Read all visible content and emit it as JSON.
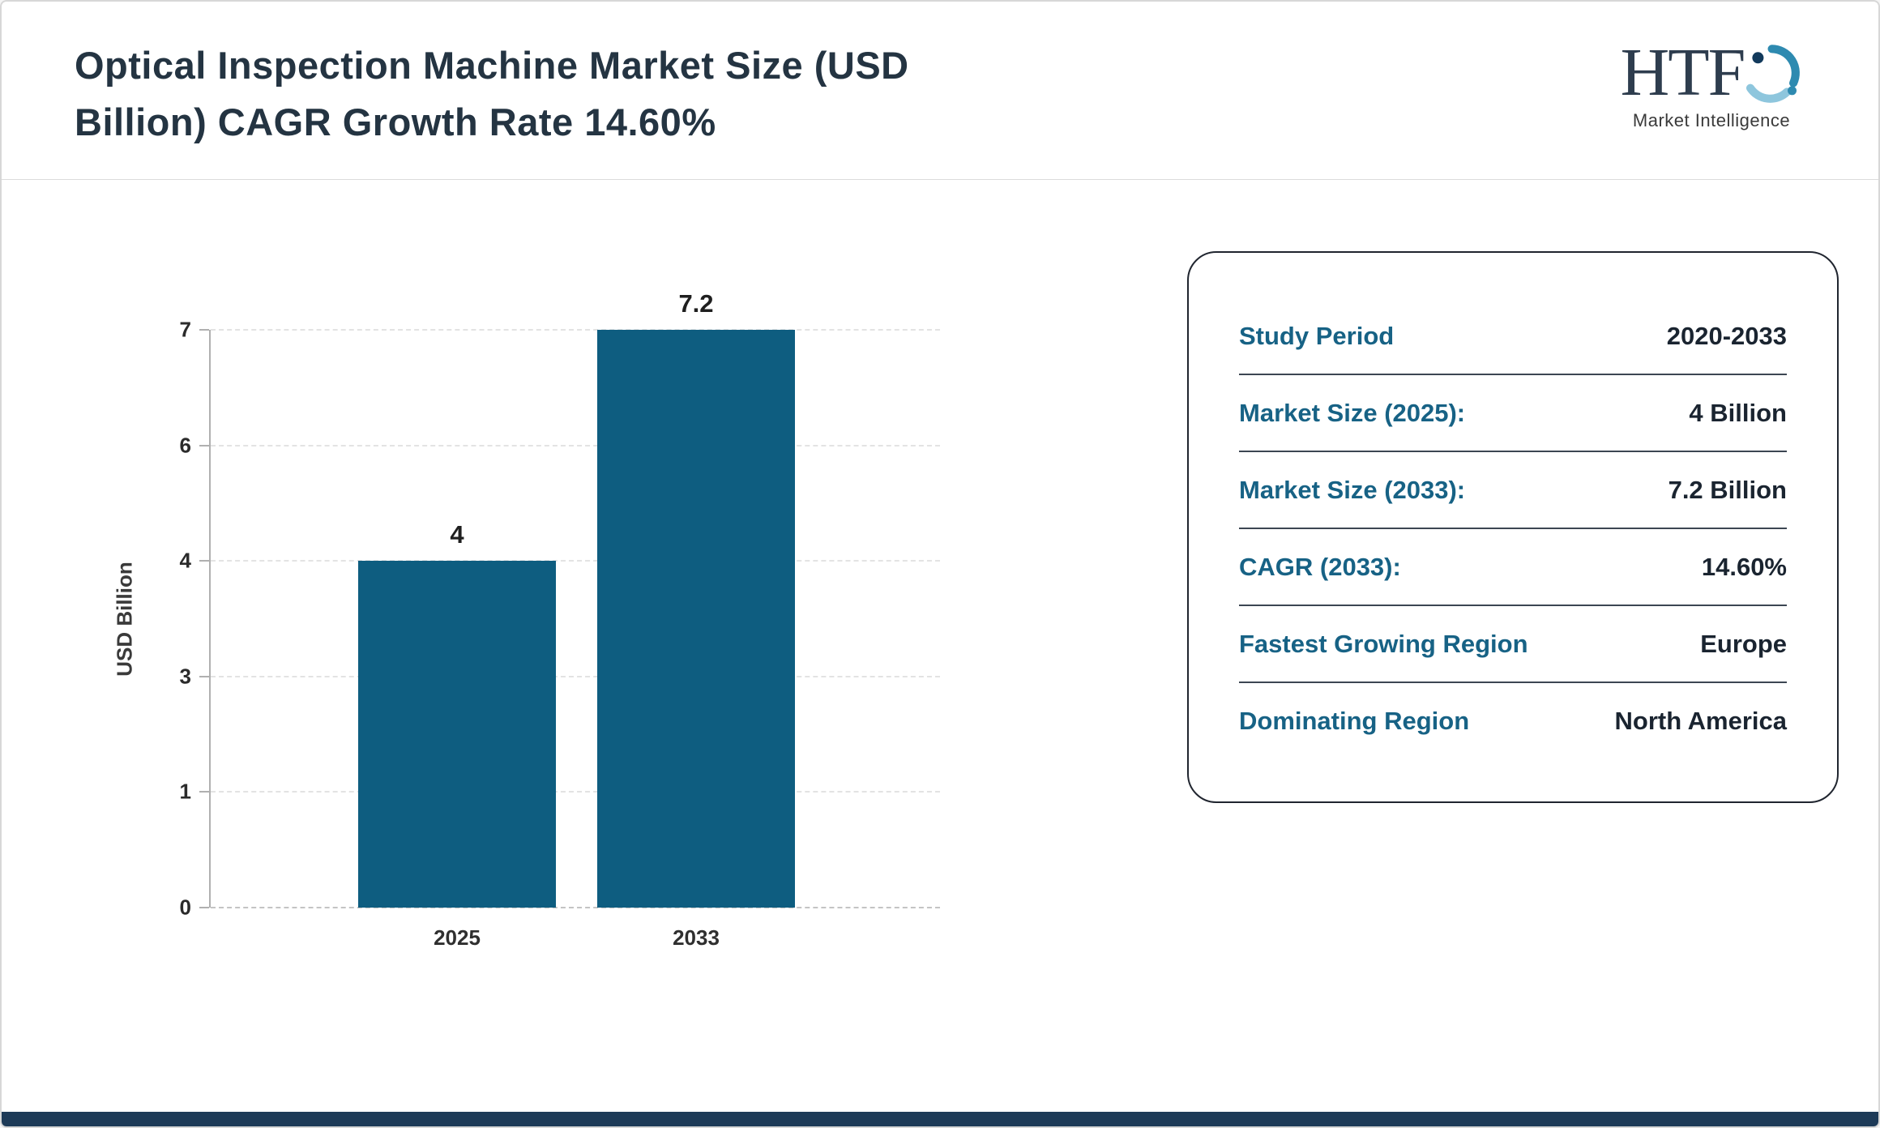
{
  "header": {
    "title_line1": "Optical Inspection Machine Market Size (USD",
    "title_line2": "Billion) CAGR Growth Rate 14.60%",
    "logo": {
      "text": "HTF",
      "subtext": "Market Intelligence"
    }
  },
  "chart_data": {
    "type": "bar",
    "title": "Optical Inspection Machine Market Size (USD Billion) CAGR Growth Rate 14.60%",
    "categories": [
      "2025",
      "2033"
    ],
    "values": [
      4,
      7.2
    ],
    "bar_labels": [
      "4",
      "7.2"
    ],
    "xlabel": "",
    "ylabel": "USD Billion",
    "yticks": [
      0,
      1,
      3,
      4,
      6,
      7
    ],
    "ylim": [
      0,
      7.2
    ],
    "grid": "horizontal-dashed",
    "legend": "none",
    "bar_color": "#0e5d80"
  },
  "summary_card": {
    "rows": [
      {
        "label": "Study Period",
        "value": "2020-2033"
      },
      {
        "label": "Market Size (2025):",
        "value": "4 Billion"
      },
      {
        "label": "Market Size (2033):",
        "value": "7.2 Billion"
      },
      {
        "label": "CAGR (2033):",
        "value": "14.60%"
      },
      {
        "label": "Fastest Growing Region",
        "value": "Europe"
      },
      {
        "label": "Dominating Region",
        "value": "North America"
      }
    ]
  },
  "colors": {
    "bar": "#0e5d80",
    "card_label": "#176285",
    "card_value": "#1a2430",
    "title_text": "#243442",
    "footer_bar": "#1d3a57"
  }
}
